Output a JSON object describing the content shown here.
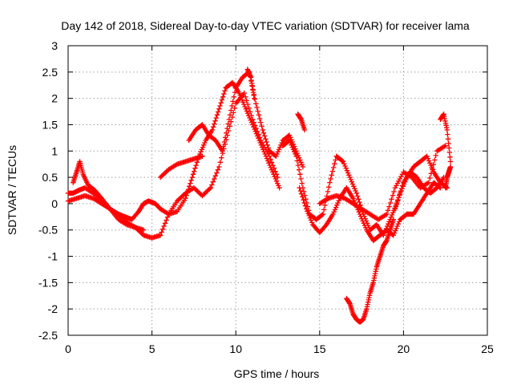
{
  "chart_data": {
    "type": "scatter",
    "title": "Day 142 of 2018, Sidereal Day-to-day VTEC variation (SDTVAR) for receiver lama",
    "xlabel": "GPS time / hours",
    "ylabel": "SDTVAR / TECUs",
    "xlim": [
      0,
      25
    ],
    "ylim": [
      -2.5,
      3
    ],
    "x_ticks": [
      0,
      5,
      10,
      15,
      20,
      25
    ],
    "x_tick_labels": [
      "0",
      "5",
      "10",
      "15",
      "20",
      "25"
    ],
    "y_ticks": [
      -2.5,
      -2,
      -1.5,
      -1,
      -0.5,
      0,
      0.5,
      1,
      1.5,
      2,
      2.5,
      3
    ],
    "y_tick_labels": [
      "-2.5",
      "-2",
      "-1.5",
      "-1",
      "-0.5",
      "0",
      "0.5",
      "1",
      "1.5",
      "2",
      "2.5",
      "3"
    ],
    "grid": true,
    "marker": "+",
    "color": "#ff0000",
    "segments": [
      {
        "x": [
          0,
          0.3,
          0.6,
          1.0,
          1.5,
          2.0,
          2.5,
          3.0,
          3.4,
          3.8,
          4.2,
          4.5,
          4.8,
          5.2,
          5.5,
          6.0,
          6.5,
          7.0,
          7.4,
          7.8,
          8.2,
          8.6,
          9.0,
          9.4,
          9.8,
          10.2,
          10.6,
          11.0,
          11.4,
          11.8,
          12.2,
          12.6
        ],
        "y": [
          0.2,
          0.2,
          0.25,
          0.3,
          0.2,
          0.05,
          -0.1,
          -0.2,
          -0.25,
          -0.3,
          -0.15,
          0.0,
          0.05,
          0.0,
          -0.1,
          -0.2,
          -0.15,
          0.1,
          0.5,
          0.9,
          1.2,
          1.4,
          1.8,
          2.2,
          2.3,
          2.1,
          1.8,
          1.5,
          1.2,
          0.9,
          0.6,
          0.3
        ]
      },
      {
        "x": [
          0,
          0.5,
          1.0,
          1.5,
          2.0,
          2.5,
          3.0,
          3.5,
          4.0,
          4.5,
          5.0,
          5.5,
          6.0,
          6.5,
          7.0,
          7.5,
          8.0,
          8.5,
          9.0,
          9.5,
          10.0,
          10.5,
          11.0,
          11.5,
          12.0,
          12.5
        ],
        "y": [
          0.05,
          0.1,
          0.15,
          0.1,
          0.0,
          -0.1,
          -0.2,
          -0.35,
          -0.45,
          -0.6,
          -0.65,
          -0.6,
          -0.2,
          0.05,
          0.2,
          0.3,
          0.15,
          0.3,
          0.7,
          1.3,
          1.9,
          2.1,
          1.6,
          1.2,
          0.9,
          0.5
        ]
      },
      {
        "x": [
          0.3,
          0.5,
          0.7,
          0.9,
          1.2,
          1.6,
          2.0,
          2.5,
          3.0,
          3.5,
          4.0,
          4.5
        ],
        "y": [
          0.4,
          0.6,
          0.8,
          0.55,
          0.35,
          0.25,
          0.1,
          -0.1,
          -0.3,
          -0.4,
          -0.45,
          -0.5
        ]
      },
      {
        "x": [
          5.5,
          6.0,
          6.5,
          7.0,
          7.5,
          8.0
        ],
        "y": [
          0.5,
          0.65,
          0.75,
          0.8,
          0.85,
          0.9
        ]
      },
      {
        "x": [
          7.2,
          7.6,
          8.0,
          8.4,
          8.8,
          9.2,
          9.6,
          10.0,
          10.4,
          10.8,
          11.2,
          11.6,
          12.0,
          12.4,
          12.8,
          13.2,
          13.6,
          14.0
        ],
        "y": [
          1.2,
          1.4,
          1.5,
          1.3,
          1.2,
          1.0,
          1.6,
          2.2,
          2.4,
          2.5,
          1.9,
          1.4,
          1.0,
          0.9,
          1.2,
          1.3,
          1.0,
          0.7
        ]
      },
      {
        "x": [
          10.7,
          10.9,
          11.1
        ],
        "y": [
          2.55,
          2.4,
          2.0
        ]
      },
      {
        "x": [
          13.7,
          13.9,
          14.1
        ],
        "y": [
          1.7,
          1.6,
          1.4
        ]
      },
      {
        "x": [
          12.8,
          13.2,
          13.6,
          14.0,
          14.4,
          14.8,
          15.2,
          15.6,
          16.0,
          16.4,
          16.8,
          17.2,
          17.6,
          18.0,
          18.4,
          18.8,
          19.2,
          19.6,
          20.0,
          20.4,
          20.8,
          21.2,
          21.6,
          22.0,
          22.4
        ],
        "y": [
          1.1,
          1.2,
          0.9,
          0.3,
          -0.2,
          -0.3,
          -0.2,
          0.4,
          0.9,
          0.8,
          0.5,
          0.2,
          -0.2,
          -0.5,
          -0.4,
          -0.6,
          -0.3,
          0.0,
          0.4,
          0.6,
          0.5,
          0.3,
          0.2,
          0.3,
          0.5
        ]
      },
      {
        "x": [
          13.8,
          14.2,
          14.6,
          15.0,
          15.4,
          15.8,
          16.2,
          16.6,
          17.0,
          17.4,
          17.8,
          18.2,
          18.6,
          19.0,
          19.4,
          19.8,
          20.2,
          20.6,
          21.0,
          21.4,
          21.8,
          22.2
        ],
        "y": [
          0.3,
          -0.1,
          -0.4,
          -0.55,
          -0.4,
          -0.2,
          0.1,
          0.3,
          0.1,
          -0.2,
          -0.5,
          -0.7,
          -0.6,
          -0.5,
          -0.6,
          -0.3,
          -0.2,
          -0.2,
          0.0,
          0.2,
          0.4,
          0.3
        ]
      },
      {
        "x": [
          15.0,
          15.5,
          16.0,
          16.5,
          17.0,
          17.5,
          18.0,
          18.5,
          19.0,
          19.5,
          20.0,
          20.5,
          21.0,
          21.5,
          22.0,
          22.5
        ],
        "y": [
          0.0,
          0.1,
          0.15,
          0.1,
          0.0,
          -0.1,
          -0.2,
          -0.3,
          -0.2,
          0.3,
          0.6,
          0.5,
          0.3,
          0.4,
          1.0,
          1.1
        ]
      },
      {
        "x": [
          16.6,
          16.8,
          17.0,
          17.2,
          17.4,
          17.6,
          17.8,
          18.0,
          18.2,
          18.4,
          18.6,
          18.8,
          19.0,
          19.2,
          19.4
        ],
        "y": [
          -1.8,
          -1.9,
          -2.1,
          -2.2,
          -2.25,
          -2.2,
          -2.0,
          -1.7,
          -1.5,
          -1.2,
          -1.0,
          -0.8,
          -0.7,
          -0.5,
          -0.3
        ]
      },
      {
        "x": [
          19.5,
          19.8,
          20.2,
          20.6,
          21.0,
          21.4,
          21.8,
          22.2,
          22.6
        ],
        "y": [
          -0.1,
          0.2,
          0.5,
          0.7,
          0.8,
          0.9,
          0.6,
          0.4,
          0.3
        ]
      },
      {
        "x": [
          22.2,
          22.4,
          22.6,
          22.8
        ],
        "y": [
          1.6,
          1.7,
          1.4,
          0.8
        ]
      },
      {
        "x": [
          22.5,
          22.6,
          22.7,
          22.8
        ],
        "y": [
          0.3,
          0.5,
          0.6,
          0.7
        ]
      }
    ]
  }
}
